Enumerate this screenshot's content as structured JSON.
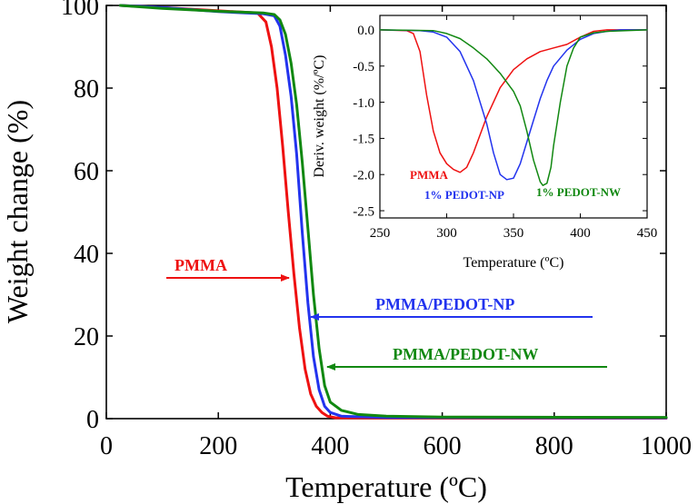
{
  "chart_data": [
    {
      "type": "line",
      "title": "",
      "xlabel": "Temperature (ºC)",
      "ylabel": "Weight change  (%)",
      "xlim": [
        0,
        1000
      ],
      "ylim": [
        0,
        100
      ],
      "xticks": [
        "0",
        "200",
        "400",
        "600",
        "800",
        "1000"
      ],
      "yticks": [
        "0",
        "20",
        "40",
        "60",
        "80",
        "100"
      ],
      "grid": false,
      "series": [
        {
          "name": "PMMA",
          "color": "#ee1111",
          "x": [
            25,
            100,
            200,
            270,
            285,
            295,
            305,
            315,
            325,
            335,
            345,
            355,
            365,
            375,
            385,
            395,
            410,
            1000
          ],
          "y": [
            100,
            99.5,
            98.7,
            98.2,
            96,
            90,
            80,
            66,
            50,
            35,
            22,
            12,
            6,
            3,
            1.5,
            0.6,
            0.2,
            0.1
          ]
        },
        {
          "name": "PMMA/PEDOT-NP",
          "color": "#2233ee",
          "x": [
            25,
            100,
            200,
            280,
            300,
            310,
            320,
            330,
            340,
            350,
            360,
            370,
            380,
            390,
            400,
            420,
            500,
            1000
          ],
          "y": [
            100,
            99.5,
            98.5,
            98,
            97.5,
            95,
            88,
            78,
            64,
            45,
            28,
            15,
            7,
            3,
            1.5,
            0.6,
            0.3,
            0.2
          ]
        },
        {
          "name": "PMMA/PEDOT-NW",
          "color": "#118811",
          "x": [
            25,
            100,
            200,
            280,
            300,
            310,
            320,
            330,
            340,
            350,
            360,
            370,
            380,
            390,
            400,
            420,
            450,
            500,
            600,
            1000
          ],
          "y": [
            100,
            99.3,
            98.6,
            98.2,
            97.8,
            96.5,
            93,
            86,
            76,
            62,
            46,
            30,
            17,
            8,
            4,
            2,
            1,
            0.6,
            0.4,
            0.3
          ]
        }
      ],
      "annotations": [
        {
          "text": "PMMA",
          "color": "#ee1111"
        },
        {
          "text": "PMMA/PEDOT-NP",
          "color": "#2233ee"
        },
        {
          "text": "PMMA/PEDOT-NW",
          "color": "#118811"
        }
      ]
    },
    {
      "type": "line",
      "title": "",
      "xlabel": "Temperature (ºC)",
      "ylabel": "Deriv. weight (%/ºC)",
      "xlim": [
        250,
        450
      ],
      "ylim": [
        -2.6,
        0.2
      ],
      "xticks": [
        "250",
        "300",
        "350",
        "400",
        "450"
      ],
      "yticks": [
        "0.0",
        "-0.5",
        "-1.0",
        "-1.5",
        "-2.0",
        "-2.5"
      ],
      "grid": false,
      "series": [
        {
          "name": "PMMA",
          "color": "#ee1111",
          "x": [
            250,
            270,
            275,
            280,
            285,
            290,
            295,
            300,
            305,
            310,
            315,
            320,
            330,
            340,
            350,
            360,
            370,
            380,
            390,
            400,
            410,
            420,
            450
          ],
          "y": [
            0,
            -0.01,
            -0.05,
            -0.3,
            -0.9,
            -1.4,
            -1.7,
            -1.85,
            -1.93,
            -1.97,
            -1.9,
            -1.7,
            -1.2,
            -0.8,
            -0.55,
            -0.4,
            -0.3,
            -0.25,
            -0.2,
            -0.1,
            -0.02,
            0,
            0
          ]
        },
        {
          "name": "1% PEDOT-NP",
          "color": "#2233ee",
          "x": [
            250,
            280,
            290,
            300,
            310,
            320,
            330,
            335,
            340,
            345,
            350,
            355,
            360,
            365,
            370,
            375,
            380,
            390,
            400,
            410,
            420,
            430,
            450
          ],
          "y": [
            0,
            -0.01,
            -0.03,
            -0.1,
            -0.3,
            -0.7,
            -1.3,
            -1.7,
            -2.0,
            -2.07,
            -2.05,
            -1.85,
            -1.55,
            -1.25,
            -0.95,
            -0.7,
            -0.5,
            -0.28,
            -0.13,
            -0.05,
            -0.02,
            0,
            0
          ]
        },
        {
          "name": "1% PEDOT-NW",
          "color": "#118811",
          "x": [
            250,
            290,
            300,
            310,
            320,
            330,
            340,
            350,
            355,
            360,
            365,
            370,
            372,
            375,
            378,
            380,
            385,
            390,
            395,
            400,
            410,
            420,
            450
          ],
          "y": [
            0,
            -0.01,
            -0.05,
            -0.12,
            -0.25,
            -0.4,
            -0.6,
            -0.85,
            -1.05,
            -1.4,
            -1.8,
            -2.1,
            -2.15,
            -2.12,
            -1.9,
            -1.6,
            -1.0,
            -0.5,
            -0.25,
            -0.1,
            -0.04,
            -0.02,
            0
          ]
        }
      ],
      "annotations": [
        {
          "text": "PMMA",
          "color": "#ee1111"
        },
        {
          "text": "1% PEDOT-NP",
          "color": "#2233ee"
        },
        {
          "text": "1% PEDOT-NW",
          "color": "#118811"
        }
      ]
    }
  ]
}
